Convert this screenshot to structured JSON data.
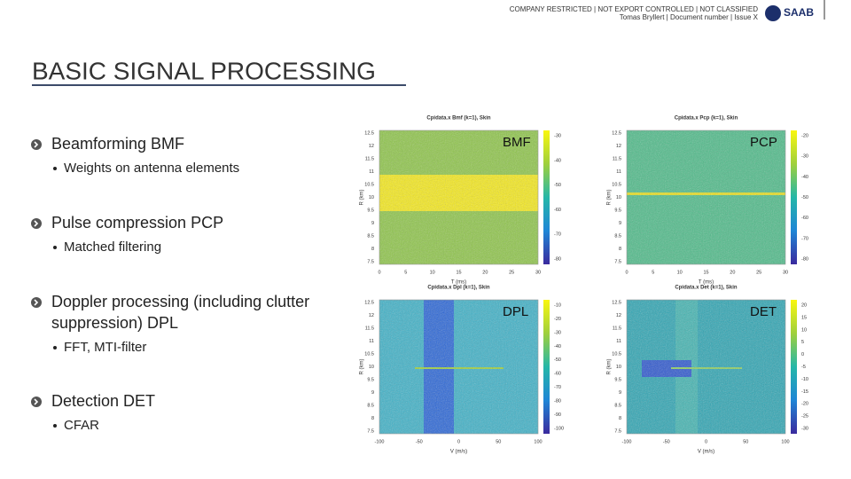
{
  "header": {
    "classification": "COMPANY RESTRICTED | NOT EXPORT CONTROLLED | NOT CLASSIFIED",
    "author_line": "Tomas Bryllert | Document number | Issue  X",
    "logo": "SAAB"
  },
  "title": "BASIC SIGNAL PROCESSING",
  "bullets": [
    {
      "text": [
        "Beamforming BMF"
      ],
      "sub": "Weights on antenna elements"
    },
    {
      "text": [
        "Pulse compression PCP"
      ],
      "sub": "Matched filtering"
    },
    {
      "text": [
        "Doppler processing (including clutter",
        "suppression) DPL"
      ],
      "sub": "FFT, MTI-filter"
    },
    {
      "text": [
        "Detection DET"
      ],
      "sub": "CFAR"
    }
  ],
  "plots": [
    {
      "title": "Cpidata.x  Bmf (k=1),  Skin",
      "label": "BMF",
      "xlabel": "T (ms)",
      "ylabel": "R (km)",
      "xticks": [
        "0",
        "5",
        "10",
        "15",
        "20",
        "25",
        "30"
      ],
      "yticks": [
        "12.5",
        "12",
        "11.5",
        "11",
        "10.5",
        "10",
        "9.5",
        "9",
        "8.5",
        "8",
        "7.5"
      ],
      "cbticks": [
        "-30",
        "-40",
        "-50",
        "-60",
        "-70",
        "-80"
      ]
    },
    {
      "title": "Cpidata.x  Pcp (k=1),  Skin",
      "label": "PCP",
      "xlabel": "T (ms)",
      "ylabel": "R (km)",
      "xticks": [
        "0",
        "5",
        "10",
        "15",
        "20",
        "25",
        "30"
      ],
      "yticks": [
        "12.5",
        "12",
        "11.5",
        "11",
        "10.5",
        "10",
        "9.5",
        "9",
        "8.5",
        "8",
        "7.5"
      ],
      "cbticks": [
        "-20",
        "-30",
        "-40",
        "-50",
        "-60",
        "-70",
        "-80"
      ]
    },
    {
      "title": "Cpidata.x  Dpl (k=1),  Skin",
      "label": "DPL",
      "xlabel": "V (m/s)",
      "ylabel": "R (km)",
      "xticks": [
        "-100",
        "-50",
        "0",
        "50",
        "100"
      ],
      "yticks": [
        "12.5",
        "12",
        "11.5",
        "11",
        "10.5",
        "10",
        "9.5",
        "9",
        "8.5",
        "8",
        "7.5"
      ],
      "cbticks": [
        "-10",
        "-20",
        "-30",
        "-40",
        "-50",
        "-60",
        "-70",
        "-80",
        "-90",
        "-100"
      ]
    },
    {
      "title": "Cpidata.x  Det (k=1),  Skin",
      "label": "DET",
      "xlabel": "V (m/s)",
      "ylabel": "R (km)",
      "xticks": [
        "-100",
        "-50",
        "0",
        "50",
        "100"
      ],
      "yticks": [
        "12.5",
        "12",
        "11.5",
        "11",
        "10.5",
        "10",
        "9.5",
        "9",
        "8.5",
        "8",
        "7.5"
      ],
      "cbticks": [
        "20",
        "15",
        "10",
        "5",
        "0",
        "-5",
        "-10",
        "-15",
        "-20",
        "-25",
        "-30"
      ]
    }
  ]
}
